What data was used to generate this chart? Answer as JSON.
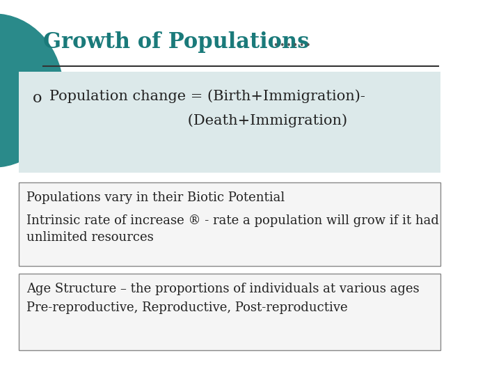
{
  "title_bold": "Growth of Populations",
  "title_dots": " ……",
  "title_color": "#1a7a7a",
  "title_dots_color": "#555555",
  "bg_color": "#ffffff",
  "bullet_box_color": "#dce9ea",
  "bullet_symbol": "o",
  "bullet_line1": "Population change = (Birth+Immigration)-",
  "bullet_line2": "                              (Death+Immigration)",
  "bullet_line2_paren": ")",
  "box1_line1": "Populations vary in their Biotic Potential",
  "box1_line2": "",
  "box1_line3": "Intrinsic rate of increase ® - rate a population will grow if it had",
  "box1_line4": "unlimited resources",
  "box2_line1": "Age Structure – the proportions of individuals at various ages",
  "box2_line2": "Pre-reproductive, Reproductive, Post-reproductive",
  "box_border_color": "#888888",
  "box_bg_color": "#f5f5f5",
  "text_color": "#222222",
  "left_arc_color": "#2a8a8a",
  "separator_color": "#333333"
}
